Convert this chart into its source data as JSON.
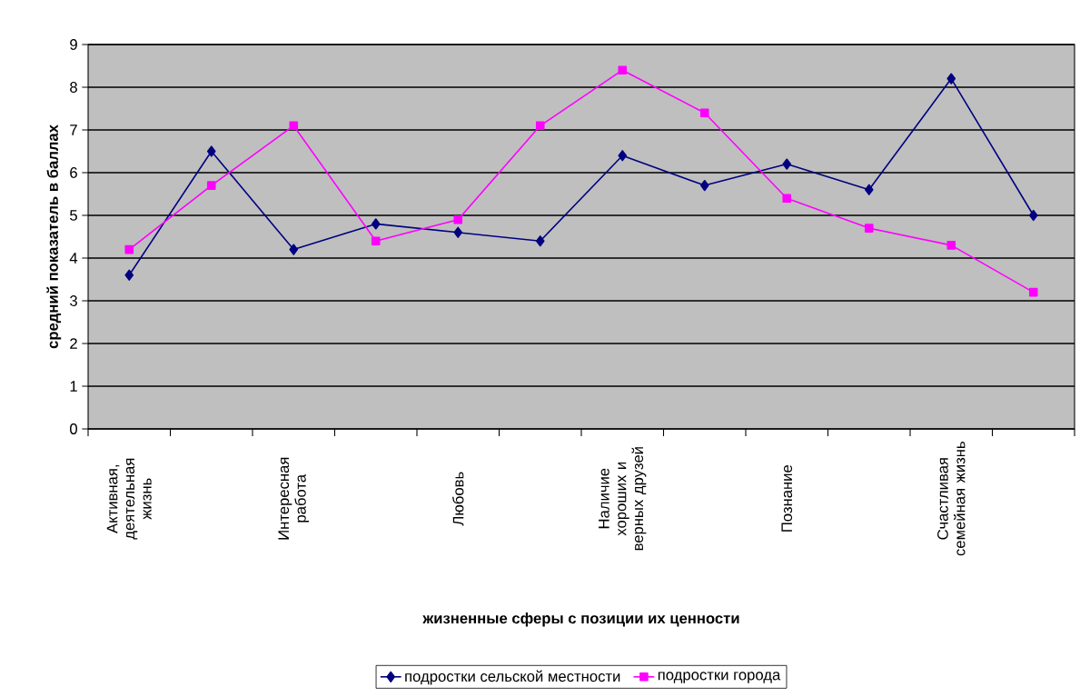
{
  "chart_data": {
    "type": "line",
    "xlabel": "жизненные сферы с позиции их ценности",
    "ylabel": "средний показатель в баллах",
    "categories": [
      "Активная, деятельная жизнь",
      null,
      "Интересная работа",
      null,
      "Любовь",
      null,
      "Наличие хороших и верных друзей",
      null,
      "Познание",
      null,
      "Счастливая семейная жизнь",
      null
    ],
    "series": [
      {
        "name": "подростки сельской местности",
        "color": "#000080",
        "marker": "diamond",
        "values": [
          3.6,
          6.5,
          4.2,
          4.8,
          4.6,
          4.4,
          6.4,
          5.7,
          6.2,
          5.6,
          8.2,
          5.0
        ]
      },
      {
        "name": "подростки города",
        "color": "#ff00ff",
        "marker": "square",
        "values": [
          4.2,
          5.7,
          7.1,
          4.4,
          4.9,
          7.1,
          8.4,
          7.4,
          5.4,
          4.7,
          4.3,
          3.2
        ]
      }
    ],
    "ylim": [
      0,
      9
    ],
    "yticks": [
      0,
      1,
      2,
      3,
      4,
      5,
      6,
      7,
      8,
      9
    ],
    "grid": "y",
    "legend": "bottom"
  }
}
